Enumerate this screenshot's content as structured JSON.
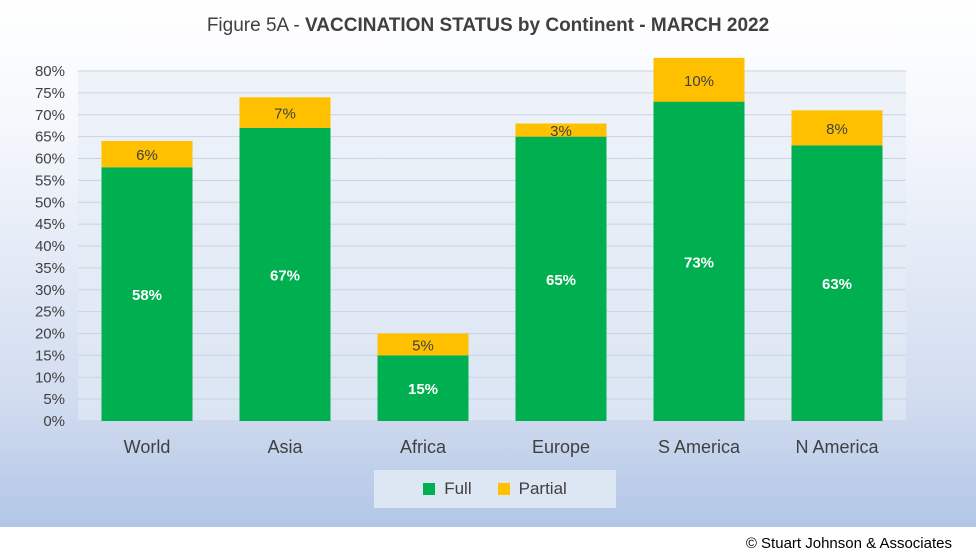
{
  "title": {
    "prefix": "Figure 5A - ",
    "main": "VACCINATION STATUS by Continent - MARCH 2022"
  },
  "copyright": "© Stuart Johnson & Associates",
  "colors": {
    "full": "#00b050",
    "partial": "#ffc000"
  },
  "chart_data": {
    "type": "bar",
    "stacked": true,
    "categories": [
      "World",
      "Asia",
      "Africa",
      "Europe",
      "S America",
      "N America"
    ],
    "series": [
      {
        "name": "Full",
        "values": [
          58,
          67,
          15,
          65,
          73,
          63
        ],
        "labels": [
          "58%",
          "67%",
          "15%",
          "65%",
          "73%",
          "63%"
        ]
      },
      {
        "name": "Partial",
        "values": [
          6,
          7,
          5,
          3,
          10,
          8
        ],
        "labels": [
          "6%",
          "7%",
          "5%",
          "3%",
          "10%",
          "8%"
        ]
      }
    ],
    "ylim": [
      0,
      80
    ],
    "yticks": [
      0,
      5,
      10,
      15,
      20,
      25,
      30,
      35,
      40,
      45,
      50,
      55,
      60,
      65,
      70,
      75,
      80
    ],
    "ytick_labels": [
      "0%",
      "5%",
      "10%",
      "15%",
      "20%",
      "25%",
      "30%",
      "35%",
      "40%",
      "45%",
      "50%",
      "55%",
      "60%",
      "65%",
      "70%",
      "75%",
      "80%"
    ],
    "grid": true,
    "legend": "bottom"
  }
}
